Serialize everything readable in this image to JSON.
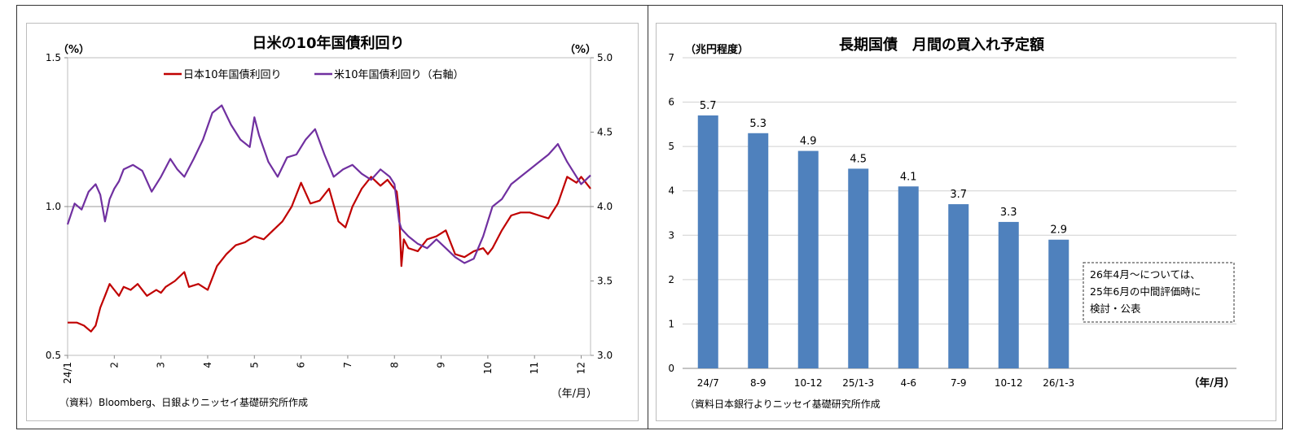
{
  "chart_data": [
    {
      "type": "line",
      "title": "日米の10年国債利回り",
      "y_left_unit": "（%）",
      "y_right_unit": "（%）",
      "xlabel": "（年/月）",
      "source": "（資料）Bloomberg、日銀よりニッセイ基礎研究所作成",
      "ylim_left": [
        0.5,
        1.5
      ],
      "ylim_right": [
        3.0,
        5.0
      ],
      "yticks_left": [
        "0.5",
        "1.0",
        "1.5"
      ],
      "yticks_right": [
        "3.0",
        "3.5",
        "4.0",
        "4.5",
        "5.0"
      ],
      "reference_line": 1.0,
      "x_ticks": [
        "24/1",
        "2",
        "3",
        "4",
        "5",
        "6",
        "7",
        "8",
        "9",
        "10",
        "11",
        "12"
      ],
      "x_range": [
        0,
        11.2
      ],
      "legend_position": "top-center",
      "series": [
        {
          "name": "日本10年国債利回り",
          "axis": "left",
          "color": "#c00000",
          "x": [
            0,
            0.2,
            0.35,
            0.5,
            0.6,
            0.7,
            0.8,
            0.9,
            1.0,
            1.1,
            1.2,
            1.35,
            1.5,
            1.7,
            1.9,
            2.0,
            2.1,
            2.3,
            2.5,
            2.6,
            2.8,
            3.0,
            3.2,
            3.4,
            3.6,
            3.8,
            4.0,
            4.2,
            4.4,
            4.6,
            4.8,
            5.0,
            5.2,
            5.4,
            5.6,
            5.8,
            5.95,
            6.1,
            6.3,
            6.5,
            6.7,
            6.85,
            6.95,
            7.05,
            7.1,
            7.15,
            7.2,
            7.3,
            7.5,
            7.7,
            7.9,
            8.1,
            8.3,
            8.5,
            8.7,
            8.9,
            9.0,
            9.1,
            9.3,
            9.5,
            9.7,
            9.9,
            10.1,
            10.3,
            10.5,
            10.7,
            10.9,
            11.0,
            11.1,
            11.2
          ],
          "values": [
            0.61,
            0.61,
            0.6,
            0.58,
            0.6,
            0.66,
            0.7,
            0.74,
            0.72,
            0.7,
            0.73,
            0.72,
            0.74,
            0.7,
            0.72,
            0.71,
            0.73,
            0.75,
            0.78,
            0.73,
            0.74,
            0.72,
            0.8,
            0.84,
            0.87,
            0.88,
            0.9,
            0.89,
            0.92,
            0.95,
            1.0,
            1.08,
            1.01,
            1.02,
            1.06,
            0.95,
            0.93,
            1.0,
            1.06,
            1.1,
            1.07,
            1.09,
            1.07,
            1.05,
            0.98,
            0.8,
            0.89,
            0.86,
            0.85,
            0.89,
            0.9,
            0.92,
            0.84,
            0.83,
            0.85,
            0.86,
            0.84,
            0.86,
            0.92,
            0.97,
            0.98,
            0.98,
            0.97,
            0.96,
            1.01,
            1.1,
            1.08,
            1.1,
            1.08,
            1.06
          ]
        },
        {
          "name": "米10年国債利回り（右軸）",
          "axis": "right",
          "color": "#7030a0",
          "x": [
            0,
            0.15,
            0.3,
            0.45,
            0.6,
            0.7,
            0.8,
            0.9,
            1.0,
            1.1,
            1.2,
            1.4,
            1.6,
            1.8,
            2.0,
            2.2,
            2.35,
            2.5,
            2.7,
            2.9,
            3.1,
            3.3,
            3.5,
            3.7,
            3.9,
            4.0,
            4.1,
            4.3,
            4.5,
            4.7,
            4.9,
            5.1,
            5.3,
            5.5,
            5.7,
            5.9,
            6.1,
            6.3,
            6.5,
            6.7,
            6.9,
            7.0,
            7.1,
            7.15,
            7.3,
            7.5,
            7.7,
            7.9,
            8.1,
            8.3,
            8.5,
            8.7,
            8.9,
            9.1,
            9.3,
            9.5,
            9.7,
            9.9,
            10.1,
            10.3,
            10.5,
            10.7,
            10.9,
            11.0,
            11.1,
            11.2
          ],
          "values": [
            3.88,
            4.02,
            3.98,
            4.1,
            4.15,
            4.08,
            3.9,
            4.05,
            4.12,
            4.17,
            4.25,
            4.28,
            4.24,
            4.1,
            4.2,
            4.32,
            4.25,
            4.2,
            4.32,
            4.45,
            4.63,
            4.68,
            4.55,
            4.45,
            4.4,
            4.6,
            4.48,
            4.3,
            4.2,
            4.33,
            4.35,
            4.45,
            4.52,
            4.35,
            4.2,
            4.25,
            4.28,
            4.22,
            4.18,
            4.25,
            4.2,
            4.15,
            3.9,
            3.85,
            3.8,
            3.75,
            3.72,
            3.78,
            3.72,
            3.66,
            3.62,
            3.65,
            3.8,
            4.0,
            4.05,
            4.15,
            4.2,
            4.25,
            4.3,
            4.35,
            4.42,
            4.3,
            4.2,
            4.15,
            4.18,
            4.21
          ]
        }
      ]
    },
    {
      "type": "bar",
      "title": "長期国債　月間の買入れ予定額",
      "y_unit": "（兆円程度）",
      "xlabel": "（年/月）",
      "source": "（資料日本銀行よりニッセイ基礎研究所作成",
      "categories": [
        "24/7",
        "8-9",
        "10-12",
        "25/1-3",
        "4-6",
        "7-9",
        "10-12",
        "26/1-3"
      ],
      "values": [
        5.7,
        5.3,
        4.9,
        4.5,
        4.1,
        3.7,
        3.3,
        2.9
      ],
      "value_labels": [
        "5.7",
        "5.3",
        "4.9",
        "4.5",
        "4.1",
        "3.7",
        "3.3",
        "2.9"
      ],
      "ylim": [
        0,
        7
      ],
      "yticks": [
        "0",
        "1",
        "2",
        "3",
        "4",
        "5",
        "6",
        "7"
      ],
      "bar_color": "#4f81bd",
      "grid": true,
      "annotation": [
        "26年4月～については、",
        "25年6月の中間評価時に",
        "検討・公表"
      ]
    }
  ]
}
